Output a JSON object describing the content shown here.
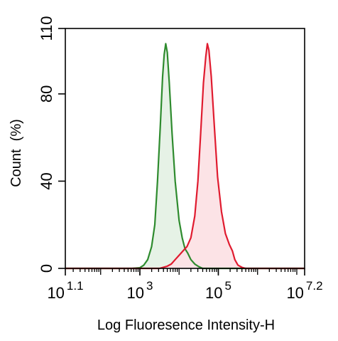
{
  "chart_data": {
    "type": "area",
    "title": "",
    "xlabel": "Log Fluoresence Intensity-H",
    "ylabel": "Count  (%)",
    "x_scale": "log10",
    "xlim_log10": [
      1.1,
      7.2
    ],
    "ylim": [
      0,
      110
    ],
    "x_ticks": [
      {
        "base": "10",
        "exp": "1.1",
        "log10": 1.1
      },
      {
        "base": "10",
        "exp": "3",
        "log10": 3
      },
      {
        "base": "10",
        "exp": "5",
        "log10": 5
      },
      {
        "base": "10",
        "exp": "7.2",
        "log10": 7.2
      }
    ],
    "y_ticks": [
      {
        "label": "0",
        "value": 0
      },
      {
        "label": "40",
        "value": 40
      },
      {
        "label": "80",
        "value": 80
      },
      {
        "label": "110",
        "value": 110
      }
    ],
    "grid": false,
    "legend": "none",
    "series": [
      {
        "color": "#2e8b2e",
        "fill": "#e6f2e6",
        "points": [
          [
            1.1,
            0
          ],
          [
            2.8,
            0
          ],
          [
            3.0,
            0.3
          ],
          [
            3.1,
            1.5
          ],
          [
            3.2,
            4
          ],
          [
            3.3,
            10
          ],
          [
            3.38,
            20
          ],
          [
            3.45,
            40
          ],
          [
            3.52,
            65
          ],
          [
            3.58,
            88
          ],
          [
            3.62,
            98
          ],
          [
            3.66,
            103
          ],
          [
            3.7,
            99
          ],
          [
            3.75,
            85
          ],
          [
            3.82,
            62
          ],
          [
            3.9,
            40
          ],
          [
            4.0,
            22
          ],
          [
            4.08,
            14
          ],
          [
            4.15,
            9
          ],
          [
            4.22,
            7
          ],
          [
            4.3,
            4
          ],
          [
            4.4,
            2
          ],
          [
            4.5,
            0.8
          ],
          [
            4.6,
            0
          ],
          [
            7.2,
            0
          ]
        ]
      },
      {
        "color": "#e01b2f",
        "fill": "#fce3e6",
        "points": [
          [
            1.1,
            0
          ],
          [
            3.5,
            0
          ],
          [
            3.7,
            1
          ],
          [
            3.8,
            2
          ],
          [
            3.9,
            4
          ],
          [
            4.0,
            6
          ],
          [
            4.1,
            8
          ],
          [
            4.2,
            10
          ],
          [
            4.3,
            14
          ],
          [
            4.4,
            24
          ],
          [
            4.48,
            40
          ],
          [
            4.55,
            62
          ],
          [
            4.62,
            85
          ],
          [
            4.68,
            97
          ],
          [
            4.72,
            103
          ],
          [
            4.76,
            100
          ],
          [
            4.82,
            88
          ],
          [
            4.9,
            65
          ],
          [
            4.98,
            42
          ],
          [
            5.08,
            26
          ],
          [
            5.18,
            16
          ],
          [
            5.28,
            11
          ],
          [
            5.36,
            8
          ],
          [
            5.42,
            4
          ],
          [
            5.5,
            1.5
          ],
          [
            5.6,
            0.5
          ],
          [
            5.7,
            0
          ],
          [
            7.2,
            0
          ]
        ]
      }
    ]
  }
}
